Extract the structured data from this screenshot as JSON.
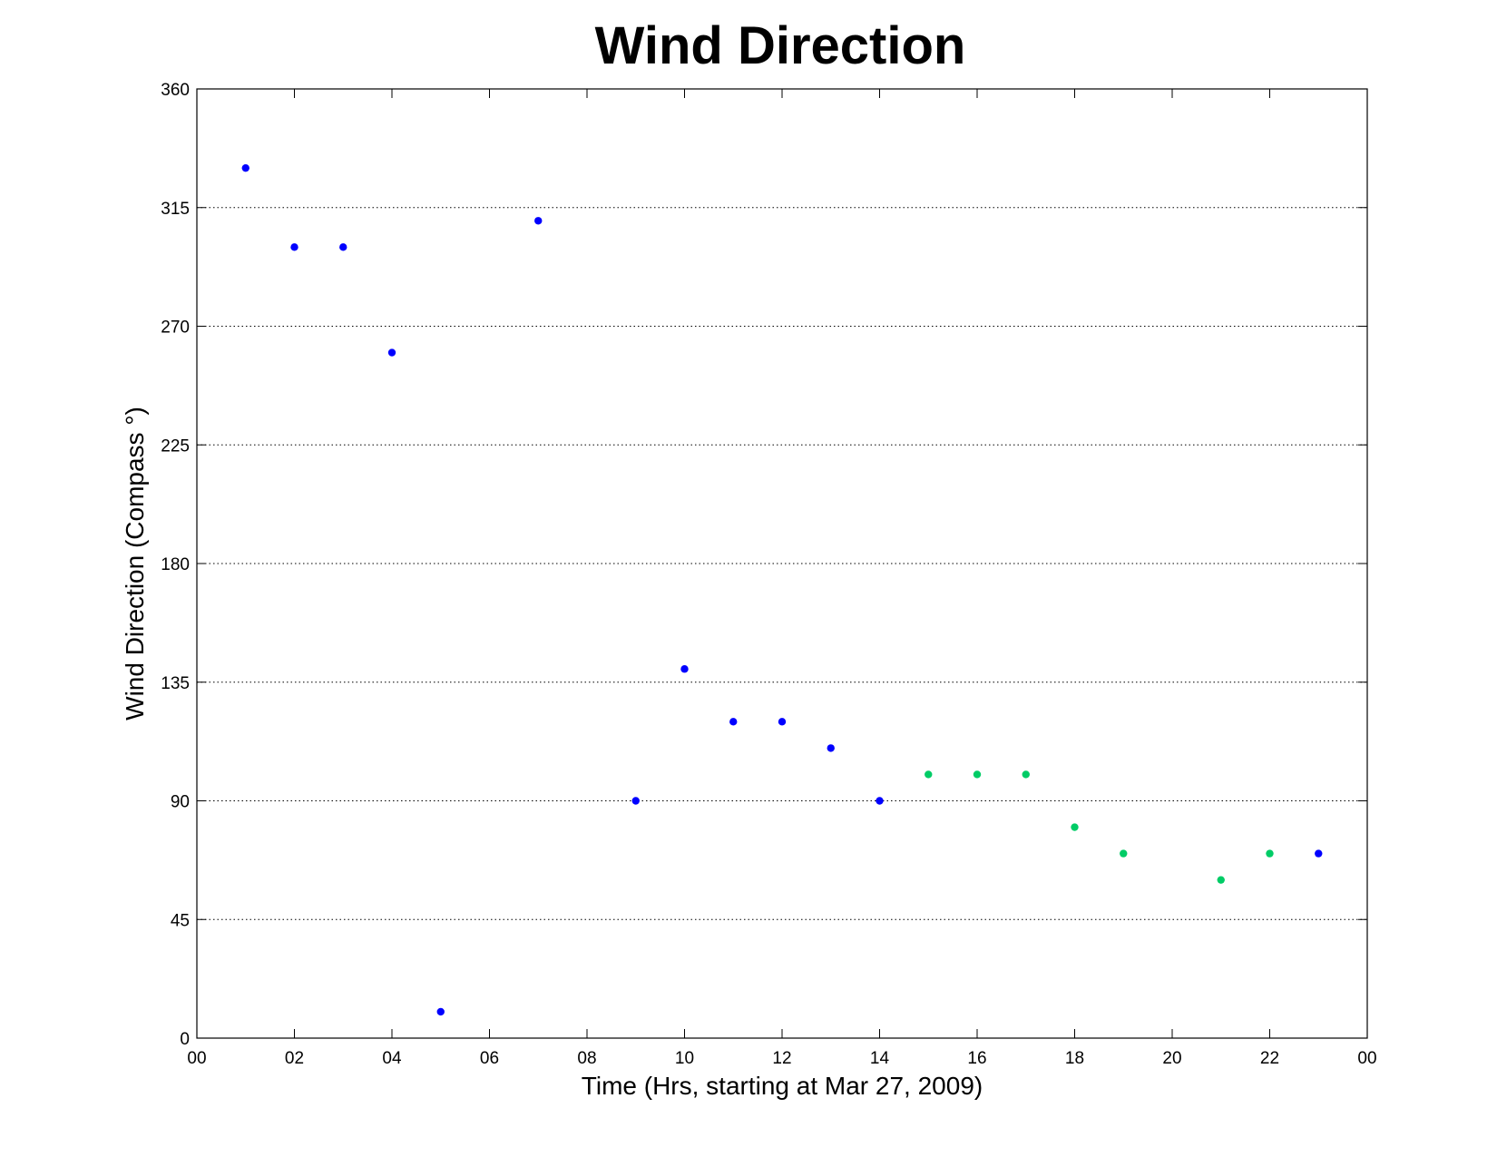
{
  "chart_data": {
    "type": "scatter",
    "title": "Wind Direction",
    "xlabel": "Time (Hrs, starting at Mar 27, 2009)",
    "ylabel": "Wind Direction (Compass °)",
    "xlim": [
      0,
      24
    ],
    "ylim": [
      0,
      360
    ],
    "x_ticks": [
      "00",
      "02",
      "04",
      "06",
      "08",
      "10",
      "12",
      "14",
      "16",
      "18",
      "20",
      "22",
      "00"
    ],
    "y_ticks": [
      0,
      45,
      90,
      135,
      180,
      225,
      270,
      315,
      360
    ],
    "grid": "y-only",
    "legend": "none",
    "colors": {
      "blue": "#0000ff",
      "green": "#00cc66"
    },
    "points": [
      {
        "x": 1,
        "y": 330,
        "color": "blue"
      },
      {
        "x": 2,
        "y": 300,
        "color": "blue"
      },
      {
        "x": 3,
        "y": 300,
        "color": "blue"
      },
      {
        "x": 4,
        "y": 260,
        "color": "blue"
      },
      {
        "x": 5,
        "y": 10,
        "color": "blue"
      },
      {
        "x": 7,
        "y": 310,
        "color": "blue"
      },
      {
        "x": 9,
        "y": 90,
        "color": "blue"
      },
      {
        "x": 10,
        "y": 140,
        "color": "blue"
      },
      {
        "x": 11,
        "y": 120,
        "color": "blue"
      },
      {
        "x": 12,
        "y": 120,
        "color": "blue"
      },
      {
        "x": 13,
        "y": 110,
        "color": "blue"
      },
      {
        "x": 14,
        "y": 90,
        "color": "blue"
      },
      {
        "x": 15,
        "y": 100,
        "color": "green"
      },
      {
        "x": 16,
        "y": 100,
        "color": "green"
      },
      {
        "x": 17,
        "y": 100,
        "color": "green"
      },
      {
        "x": 18,
        "y": 80,
        "color": "green"
      },
      {
        "x": 19,
        "y": 70,
        "color": "green"
      },
      {
        "x": 21,
        "y": 60,
        "color": "green"
      },
      {
        "x": 22,
        "y": 70,
        "color": "green"
      },
      {
        "x": 23,
        "y": 70,
        "color": "blue"
      }
    ]
  }
}
